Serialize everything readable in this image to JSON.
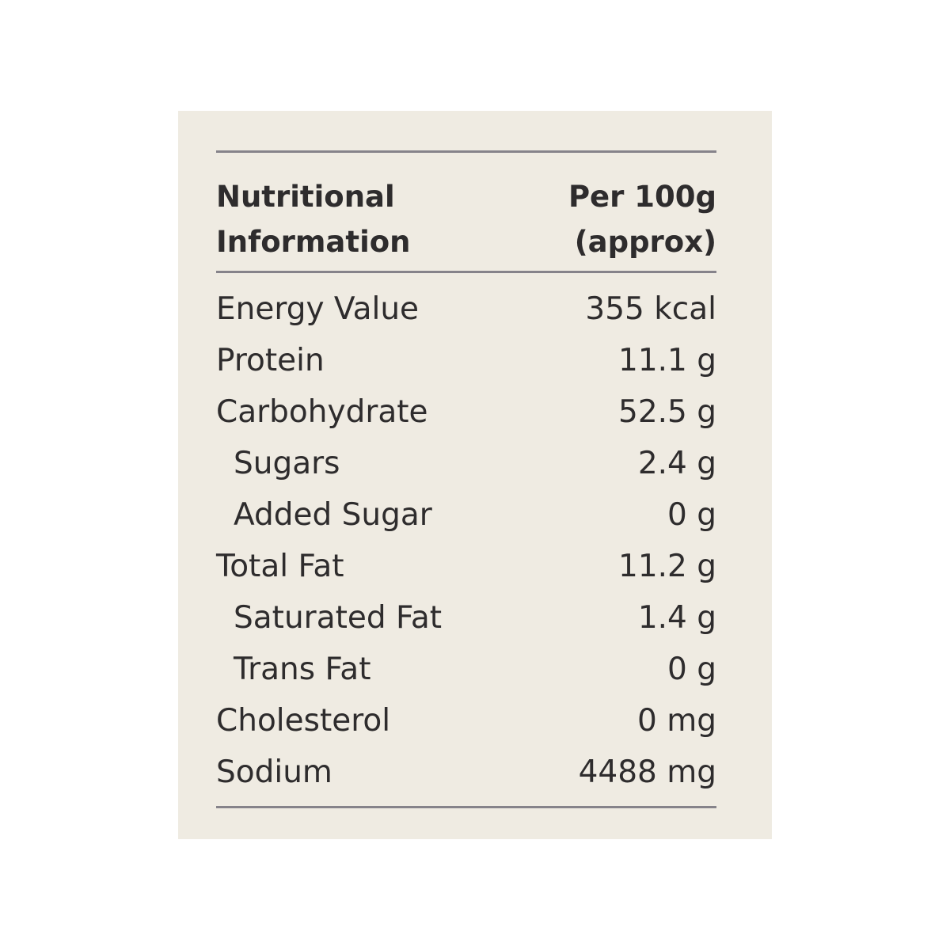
{
  "table": {
    "header": [
      "Nutritional Information",
      "Per 100g (approx)"
    ],
    "rows": [
      [
        "Energy Value",
        "355 kcal"
      ],
      [
        "Protein",
        "11.1 g"
      ],
      [
        "Carbohydrate",
        "52.5 g"
      ],
      [
        "Sugars",
        "2.4 g"
      ],
      [
        "Added Sugar",
        "0 g"
      ],
      [
        "Total Fat",
        "11.2 g"
      ],
      [
        "Saturated Fat",
        "1.4 g"
      ],
      [
        "Trans Fat",
        "0 g"
      ],
      [
        "Cholesterol",
        "0 mg"
      ],
      [
        "Sodium",
        "4488 mg"
      ]
    ],
    "indented": [
      false,
      false,
      false,
      true,
      true,
      false,
      true,
      true,
      false,
      false
    ]
  }
}
